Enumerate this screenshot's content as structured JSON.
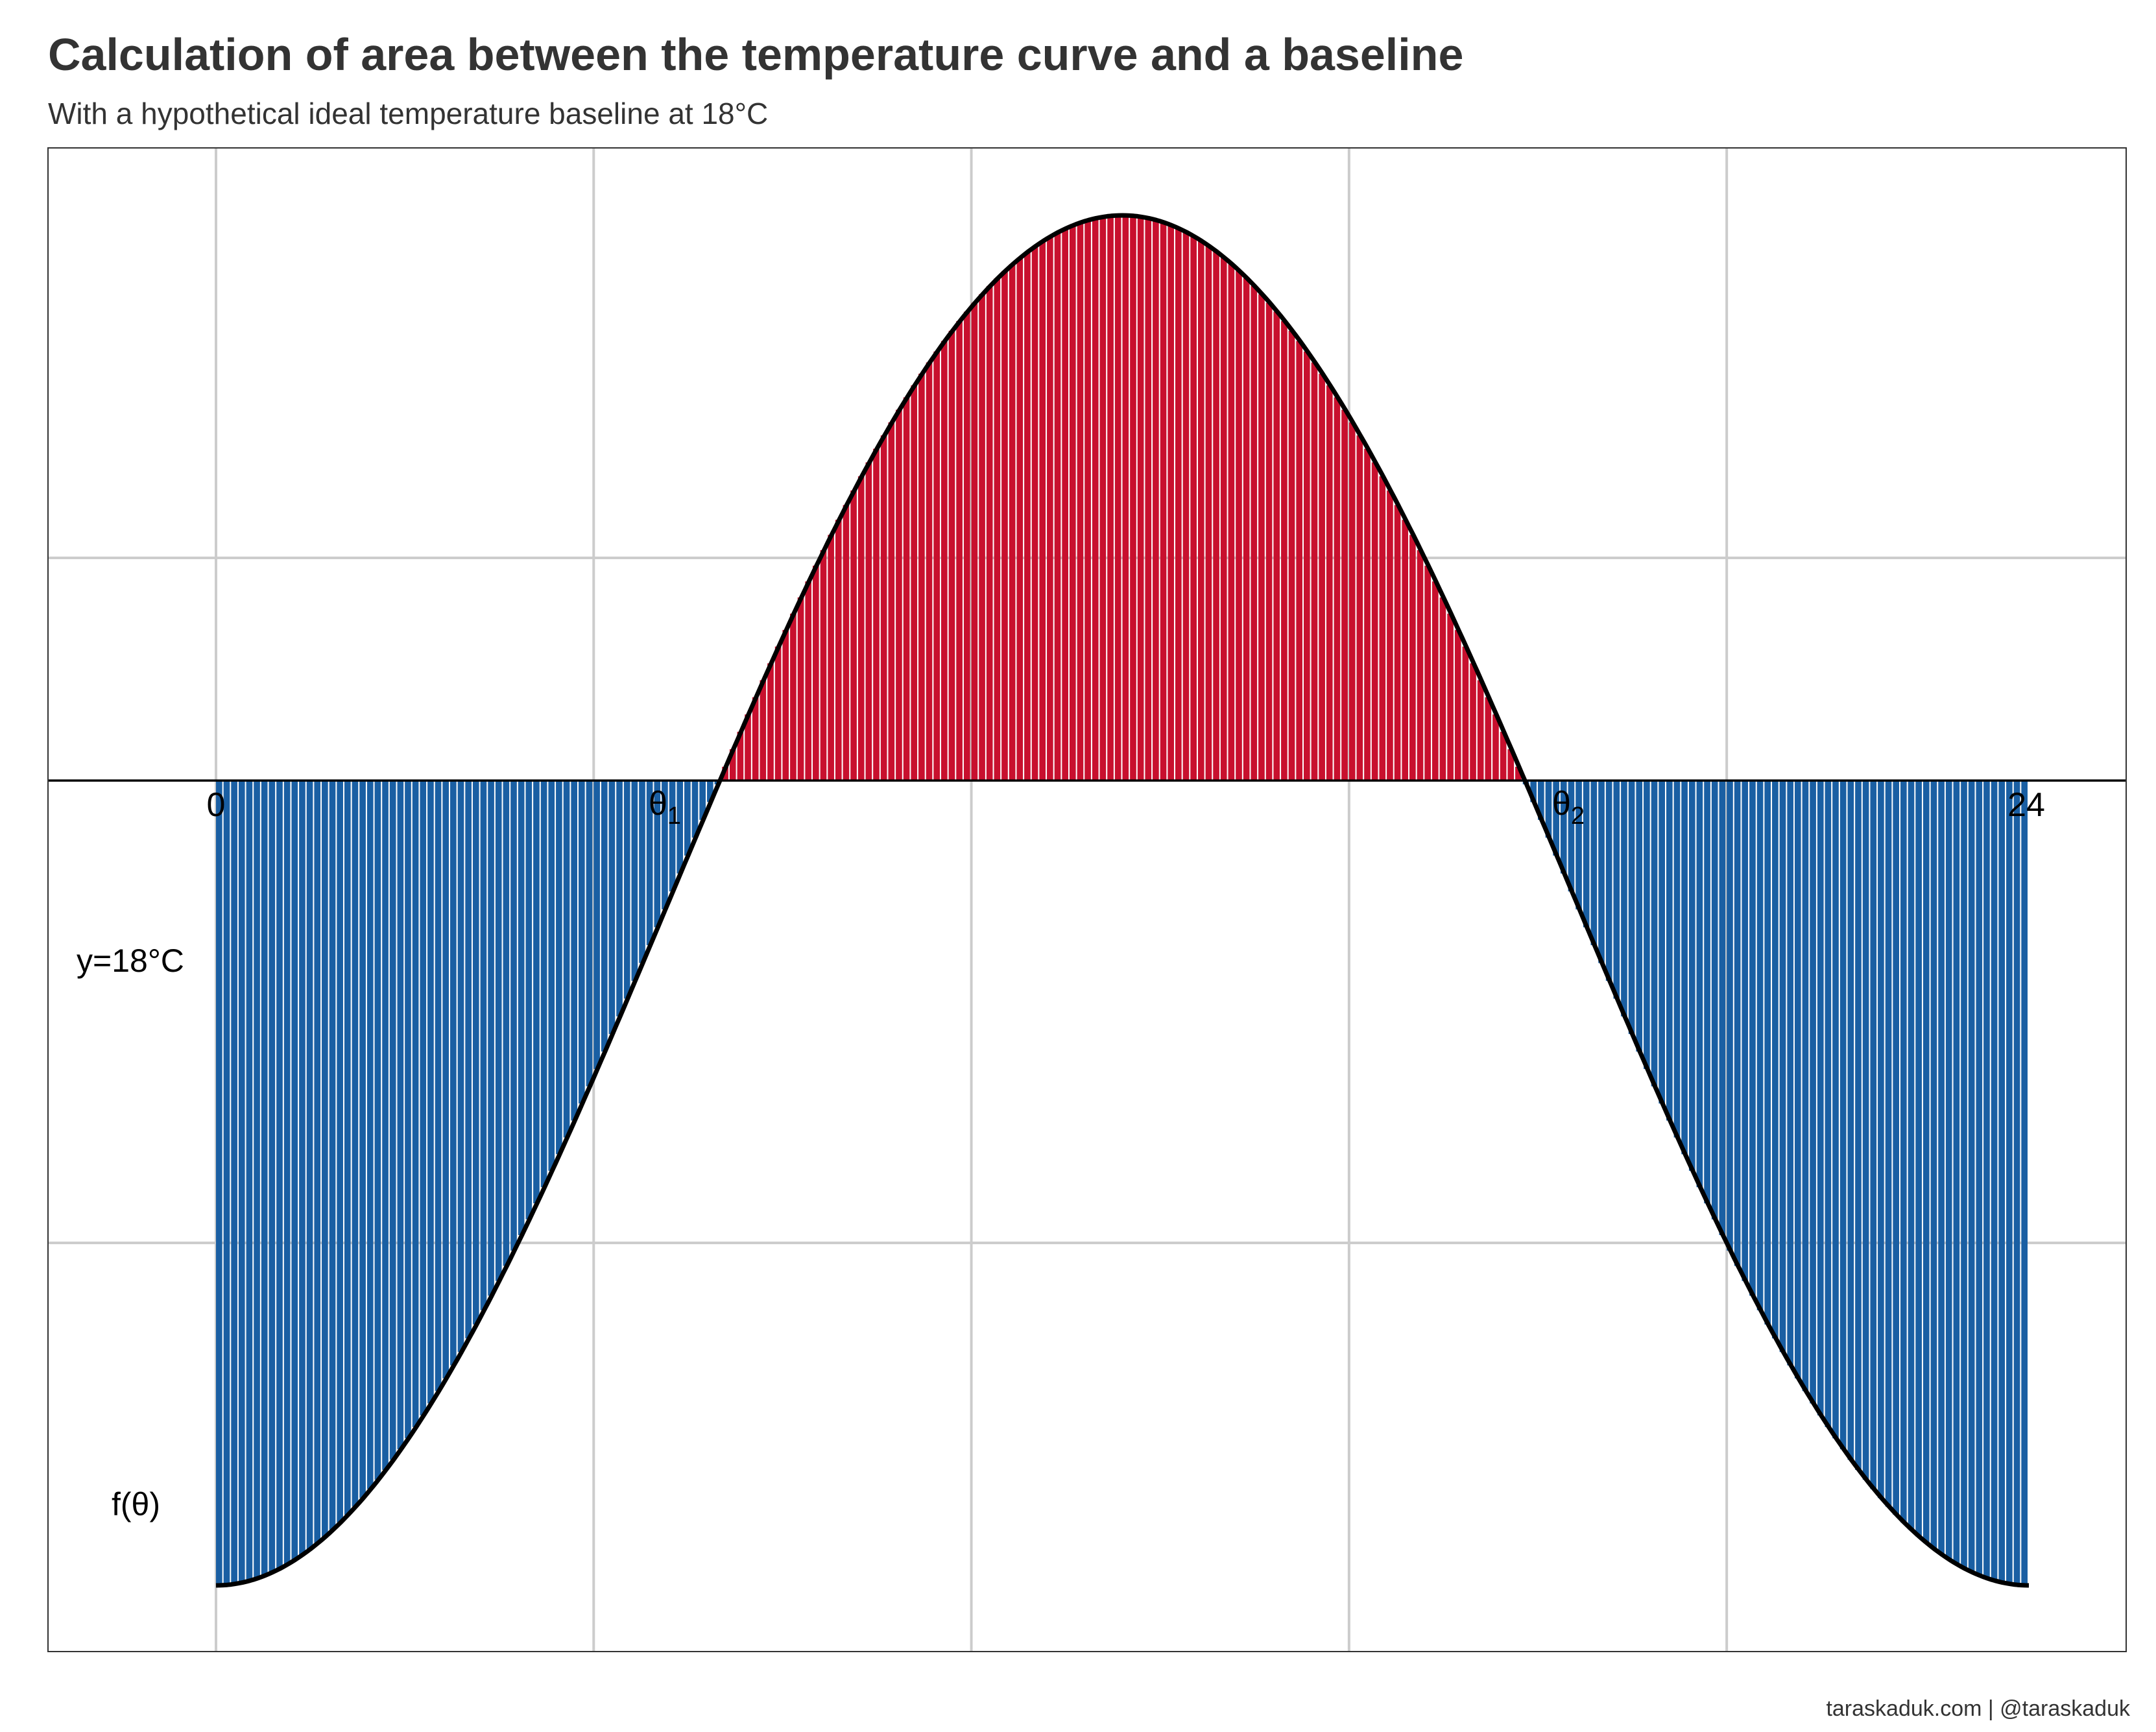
{
  "title": "Calculation of area between the temperature curve and a baseline",
  "subtitle": "With a hypothetical ideal temperature baseline at 18°C",
  "caption": "taraskaduk.com | @taraskaduk",
  "colors": {
    "above_baseline": "#C8102E",
    "below_baseline": "#1A5FA3",
    "curve": "#000000",
    "grid": "#CCCCCC",
    "panel_border": "#333333"
  },
  "chart_data": {
    "type": "area",
    "x_range": [
      0,
      24
    ],
    "curve": "f(θ) = -cos(2πθ / 24)",
    "baseline_value": 0.175,
    "fill_bar_count": 240,
    "grid": true,
    "annotations": {
      "x_start": "0",
      "x_end": "24",
      "theta_1": {
        "base": "θ",
        "sub": "1"
      },
      "theta_2": {
        "base": "θ",
        "sub": "2"
      },
      "baseline_label": "y=18°C",
      "curve_label": "f(θ)"
    },
    "fill_rule": "red where f(θ) > baseline, blue where f(θ) < baseline"
  }
}
